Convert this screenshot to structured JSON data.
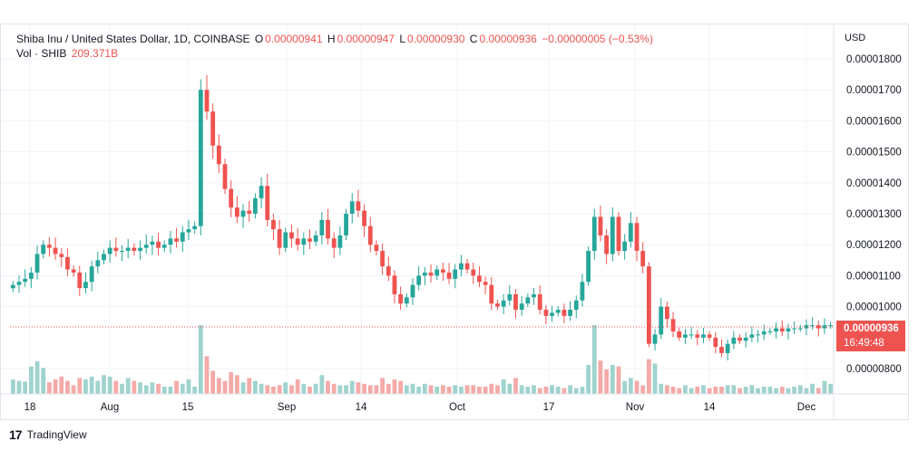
{
  "legend": {
    "title": "Shiba Inu / United States Dollar, 1D, COINBASE",
    "o_label": "O",
    "o_value": "0.00000941",
    "h_label": "H",
    "h_value": "0.00000947",
    "l_label": "L",
    "l_value": "0.00000930",
    "c_label": "C",
    "c_value": "0.00000936",
    "change": "−0.00000005 (−0.53%)",
    "vol_label": "Vol · SHIB",
    "vol_value": "209.371B"
  },
  "price_scale": {
    "currency": "USD",
    "ticks": [
      "0.00001800",
      "0.00001700",
      "0.00001600",
      "0.00001500",
      "0.00001400",
      "0.00001300",
      "0.00001200",
      "0.00001100",
      "0.00001000",
      "0.00000800"
    ],
    "current_price": "0.00000936",
    "countdown": "16:49:48"
  },
  "brand": {
    "name": "TradingView"
  },
  "colors": {
    "up": "#26a69a",
    "down": "#ef5350",
    "up_vol": "#9fd3ce",
    "down_vol": "#f4aaa8",
    "grid": "#f0f3fa"
  },
  "chart_data": {
    "type": "candlestick",
    "title": "Shiba Inu / United States Dollar, 1D, COINBASE",
    "ylabel": "USD",
    "ylim": [
      7.6e-06,
      1.88e-05
    ],
    "x_tick_labels": [
      "18",
      "Aug",
      "15",
      "Sep",
      "14",
      "Oct",
      "17",
      "Nov",
      "14",
      "Dec"
    ],
    "series": [
      {
        "name": "price",
        "closes": [
          1.07e-05,
          1.08e-05,
          1.09e-05,
          1.11e-05,
          1.17e-05,
          1.2e-05,
          1.19e-05,
          1.17e-05,
          1.16e-05,
          1.12e-05,
          1.11e-05,
          1.06e-05,
          1.08e-05,
          1.13e-05,
          1.15e-05,
          1.17e-05,
          1.19e-05,
          1.18e-05,
          1.18e-05,
          1.19e-05,
          1.18e-05,
          1.19e-05,
          1.2e-05,
          1.21e-05,
          1.19e-05,
          1.2e-05,
          1.22e-05,
          1.21e-05,
          1.24e-05,
          1.25e-05,
          1.26e-05,
          1.7e-05,
          1.63e-05,
          1.52e-05,
          1.46e-05,
          1.38e-05,
          1.32e-05,
          1.29e-05,
          1.31e-05,
          1.3e-05,
          1.35e-05,
          1.39e-05,
          1.28e-05,
          1.25e-05,
          1.19e-05,
          1.24e-05,
          1.22e-05,
          1.2e-05,
          1.22e-05,
          1.21e-05,
          1.23e-05,
          1.28e-05,
          1.22e-05,
          1.19e-05,
          1.23e-05,
          1.3e-05,
          1.34e-05,
          1.31e-05,
          1.26e-05,
          1.2e-05,
          1.18e-05,
          1.13e-05,
          1.1e-05,
          1.04e-05,
          1.01e-05,
          1.03e-05,
          1.07e-05,
          1.1e-05,
          1.11e-05,
          1.1e-05,
          1.12e-05,
          1.11e-05,
          1.09e-05,
          1.12e-05,
          1.14e-05,
          1.12e-05,
          1.1e-05,
          1.08e-05,
          1.07e-05,
          1.01e-05,
          1e-05,
          1.02e-05,
          1.04e-05,
          9.9e-06,
          1.01e-05,
          1.03e-05,
          1.04e-05,
          9.9e-06,
          9.7e-06,
          9.8e-06,
          9.9e-06,
          9.7e-06,
          9.9e-06,
          1.02e-05,
          1.08e-05,
          1.18e-05,
          1.29e-05,
          1.23e-05,
          1.17e-05,
          1.29e-05,
          1.18e-05,
          1.21e-05,
          1.27e-05,
          1.18e-05,
          1.13e-05,
          8.8e-06,
          9.1e-06,
          1e-05,
          9.6e-06,
          9.2e-06,
          9e-06,
          9.1e-06,
          9.1e-06,
          9e-06,
          9.1e-06,
          9e-06,
          8.7e-06,
          8.5e-06,
          8.8e-06,
          9e-06,
          8.9e-06,
          9e-06,
          9.1e-06,
          9.1e-06,
          9.2e-06,
          9.2e-06,
          9.3e-06,
          9.2e-06,
          9.3e-06,
          9.3e-06,
          9.3e-06,
          9.4e-06,
          9.4e-06,
          9.3e-06,
          9.4e-06,
          9.4e-06
        ]
      },
      {
        "name": "Vol · SHIB",
        "values_relative": [
          0.2,
          0.18,
          0.17,
          0.38,
          0.45,
          0.36,
          0.16,
          0.2,
          0.24,
          0.18,
          0.12,
          0.22,
          0.2,
          0.24,
          0.18,
          0.26,
          0.24,
          0.18,
          0.14,
          0.22,
          0.18,
          0.16,
          0.12,
          0.16,
          0.14,
          0.1,
          0.1,
          0.18,
          0.14,
          0.2,
          0.1,
          0.95,
          0.52,
          0.32,
          0.22,
          0.18,
          0.3,
          0.26,
          0.16,
          0.22,
          0.18,
          0.14,
          0.12,
          0.1,
          0.12,
          0.16,
          0.12,
          0.2,
          0.14,
          0.1,
          0.14,
          0.26,
          0.18,
          0.14,
          0.12,
          0.12,
          0.18,
          0.16,
          0.14,
          0.12,
          0.12,
          0.22,
          0.14,
          0.2,
          0.18,
          0.12,
          0.14,
          0.1,
          0.14,
          0.12,
          0.1,
          0.12,
          0.1,
          0.12,
          0.1,
          0.12,
          0.12,
          0.1,
          0.1,
          0.14,
          0.12,
          0.2,
          0.14,
          0.22,
          0.12,
          0.1,
          0.12,
          0.08,
          0.1,
          0.12,
          0.1,
          0.08,
          0.12,
          0.08,
          0.1,
          0.4,
          0.95,
          0.46,
          0.34,
          0.4,
          0.38,
          0.18,
          0.22,
          0.18,
          0.12,
          0.48,
          0.42,
          0.14,
          0.12,
          0.1,
          0.08,
          0.12,
          0.08,
          0.1,
          0.12,
          0.08,
          0.1,
          0.1,
          0.12,
          0.12,
          0.08,
          0.1,
          0.12,
          0.08,
          0.1,
          0.1,
          0.08,
          0.1,
          0.08,
          0.1,
          0.12,
          0.08,
          0.14,
          0.08,
          0.18,
          0.14
        ]
      }
    ]
  }
}
